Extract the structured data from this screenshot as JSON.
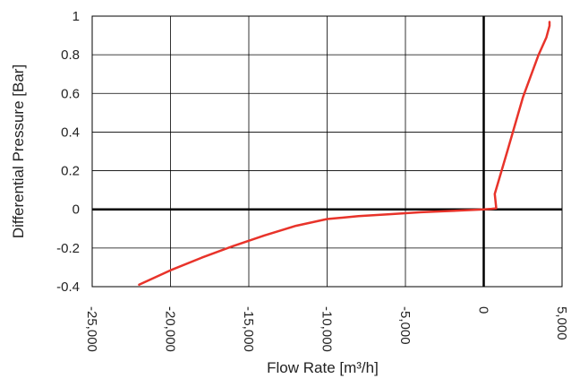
{
  "chart_data": {
    "type": "line",
    "title": "",
    "xlabel": "Flow Rate [m³/h]",
    "ylabel": "Differential Pressure [Bar]",
    "xlim": [
      -25000,
      5000
    ],
    "ylim": [
      -0.4,
      1.0
    ],
    "x_ticks": [
      -25000,
      -20000,
      -15000,
      -10000,
      -5000,
      0,
      5000
    ],
    "x_tick_labels": [
      "-25,000",
      "-20,000",
      "-15,000",
      "-10,000",
      "-5,000",
      "0",
      "5,000"
    ],
    "y_ticks": [
      -0.4,
      -0.2,
      0,
      0.2,
      0.4,
      0.6,
      0.8,
      1
    ],
    "y_tick_labels": [
      "-0.4",
      "-0.2",
      "0",
      "0.2",
      "0.4",
      "0.6",
      "0.8",
      "1"
    ],
    "grid": true,
    "colors": {
      "series": "#e8332a",
      "grid": "#000000",
      "zero_axes": "#000000"
    },
    "series": [
      {
        "x": [
          -22000,
          -20000,
          -18000,
          -16000,
          -14000,
          -12000,
          -10000,
          -8000,
          -6000,
          -4000,
          -2000,
          0,
          500,
          800,
          700,
          1500,
          2500,
          3500,
          4000,
          4200,
          4200
        ],
        "y": [
          -0.39,
          -0.315,
          -0.25,
          -0.19,
          -0.135,
          -0.085,
          -0.05,
          -0.035,
          -0.025,
          -0.015,
          -0.008,
          0,
          0.003,
          0.005,
          0.08,
          0.3,
          0.58,
          0.8,
          0.89,
          0.95,
          0.97
        ]
      }
    ]
  }
}
